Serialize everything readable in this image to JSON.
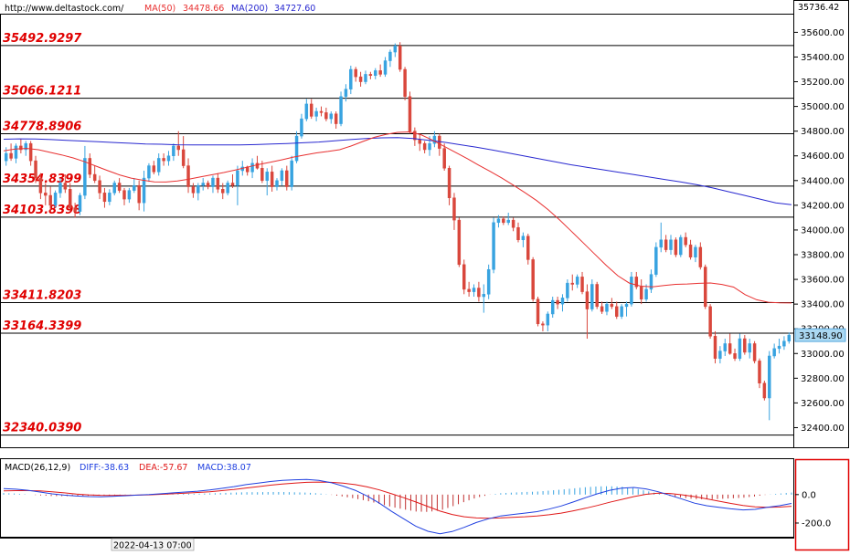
{
  "header": {
    "url": "http://www.deltastock.com/",
    "ma50_label": "MA(50)",
    "ma50_value": "34478.66",
    "ma200_label": "MA(200)",
    "ma200_value": "34727.60",
    "top_value": "35736.42"
  },
  "current_price": "33148.90",
  "current_price_value": 33148.9,
  "cursor_time": "2022-04-13 07:00",
  "levels": [
    {
      "label": "35492.9297",
      "value": 35492.9297
    },
    {
      "label": "35066.1211",
      "value": 35066.1211
    },
    {
      "label": "34778.8906",
      "value": 34778.8906
    },
    {
      "label": "34354.8399",
      "value": 34354.8399
    },
    {
      "label": "34103.8398",
      "value": 34103.8398
    },
    {
      "label": "33411.8203",
      "value": 33411.8203
    },
    {
      "label": "33164.3399",
      "value": 33164.3399
    },
    {
      "label": "32340.0390",
      "value": 32340.039
    }
  ],
  "macd_panel": {
    "label": "MACD(26,12,9)",
    "diff": "DIFF:-38.63",
    "dea": "DEA:-57.67",
    "macd": "MACD:38.07",
    "ticks": [
      "0.0",
      "-200.0"
    ],
    "tick_values": [
      0,
      -200
    ]
  },
  "colors": {
    "up": "#38a3e0",
    "down": "#d9473c",
    "ma50": "#e83030",
    "ma200": "#2828d0",
    "level_text": "#e00000",
    "diff": "#2040e0",
    "dea": "#e01818",
    "hist": "#c03030"
  },
  "chart_data": {
    "type": "candlestick",
    "ylim": [
      32300,
      35736
    ],
    "yticks": [
      32400,
      32600,
      32800,
      33000,
      33200,
      33400,
      33600,
      33800,
      34000,
      34200,
      34400,
      34600,
      34800,
      35000,
      35200,
      35400,
      35600
    ],
    "ohlc": [
      [
        34560,
        34670,
        34520,
        34620
      ],
      [
        34620,
        34700,
        34560,
        34580
      ],
      [
        34580,
        34700,
        34540,
        34680
      ],
      [
        34680,
        34740,
        34620,
        34650
      ],
      [
        34650,
        34720,
        34600,
        34700
      ],
      [
        34700,
        34720,
        34520,
        34560
      ],
      [
        34560,
        34600,
        34380,
        34420
      ],
      [
        34420,
        34460,
        34250,
        34300
      ],
      [
        34300,
        34380,
        34200,
        34280
      ],
      [
        34280,
        34350,
        34150,
        34200
      ],
      [
        34200,
        34320,
        34180,
        34300
      ],
      [
        34300,
        34420,
        34260,
        34380
      ],
      [
        34380,
        34450,
        34300,
        34330
      ],
      [
        34330,
        34380,
        34150,
        34180
      ],
      [
        34180,
        34220,
        34100,
        34150
      ],
      [
        34150,
        34300,
        34120,
        34280
      ],
      [
        34280,
        34680,
        34250,
        34580
      ],
      [
        34580,
        34620,
        34420,
        34450
      ],
      [
        34450,
        34520,
        34380,
        34400
      ],
      [
        34400,
        34440,
        34250,
        34300
      ],
      [
        34300,
        34340,
        34180,
        34230
      ],
      [
        34230,
        34330,
        34200,
        34300
      ],
      [
        34300,
        34400,
        34280,
        34380
      ],
      [
        34380,
        34420,
        34300,
        34320
      ],
      [
        34320,
        34340,
        34200,
        34250
      ],
      [
        34250,
        34340,
        34220,
        34320
      ],
      [
        34320,
        34420,
        34300,
        34360
      ],
      [
        34360,
        34400,
        34160,
        34220
      ],
      [
        34220,
        34480,
        34150,
        34420
      ],
      [
        34420,
        34540,
        34390,
        34520
      ],
      [
        34520,
        34560,
        34450,
        34470
      ],
      [
        34470,
        34620,
        34440,
        34580
      ],
      [
        34580,
        34620,
        34520,
        34560
      ],
      [
        34560,
        34640,
        34520,
        34600
      ],
      [
        34600,
        34700,
        34560,
        34680
      ],
      [
        34680,
        34800,
        34600,
        34650
      ],
      [
        34650,
        34760,
        34500,
        34520
      ],
      [
        34520,
        34580,
        34300,
        34350
      ],
      [
        34350,
        34380,
        34260,
        34300
      ],
      [
        34300,
        34380,
        34240,
        34360
      ],
      [
        34360,
        34420,
        34320,
        34380
      ],
      [
        34380,
        34400,
        34330,
        34350
      ],
      [
        34350,
        34440,
        34300,
        34420
      ],
      [
        34420,
        34460,
        34300,
        34330
      ],
      [
        34330,
        34380,
        34250,
        34300
      ],
      [
        34300,
        34400,
        34280,
        34380
      ],
      [
        34380,
        34450,
        34340,
        34360
      ],
      [
        34360,
        34520,
        34200,
        34480
      ],
      [
        34480,
        34560,
        34440,
        34510
      ],
      [
        34510,
        34520,
        34440,
        34470
      ],
      [
        34470,
        34580,
        34420,
        34540
      ],
      [
        34540,
        34600,
        34490,
        34500
      ],
      [
        34500,
        34560,
        34380,
        34400
      ],
      [
        34400,
        34500,
        34280,
        34470
      ],
      [
        34470,
        34520,
        34310,
        34350
      ],
      [
        34350,
        34420,
        34320,
        34400
      ],
      [
        34400,
        34500,
        34360,
        34480
      ],
      [
        34480,
        34520,
        34320,
        34350
      ],
      [
        34350,
        34600,
        34320,
        34560
      ],
      [
        34560,
        34800,
        34540,
        34760
      ],
      [
        34760,
        34940,
        34740,
        34900
      ],
      [
        34900,
        35060,
        34880,
        35020
      ],
      [
        35020,
        35060,
        34900,
        34920
      ],
      [
        34920,
        34990,
        34880,
        34960
      ],
      [
        34960,
        35000,
        34920,
        34950
      ],
      [
        34950,
        34990,
        34880,
        34900
      ],
      [
        34900,
        34960,
        34860,
        34940
      ],
      [
        34940,
        34960,
        34820,
        34860
      ],
      [
        34860,
        35120,
        34840,
        35080
      ],
      [
        35080,
        35180,
        35040,
        35140
      ],
      [
        35140,
        35330,
        35100,
        35300
      ],
      [
        35300,
        35320,
        35200,
        35240
      ],
      [
        35240,
        35280,
        35160,
        35200
      ],
      [
        35200,
        35290,
        35180,
        35260
      ],
      [
        35260,
        35280,
        35220,
        35250
      ],
      [
        35250,
        35310,
        35220,
        35290
      ],
      [
        35290,
        35340,
        35240,
        35260
      ],
      [
        35260,
        35400,
        35240,
        35370
      ],
      [
        35370,
        35460,
        35320,
        35440
      ],
      [
        35440,
        35510,
        35400,
        35490
      ],
      [
        35490,
        35520,
        35280,
        35300
      ],
      [
        35300,
        35320,
        35050,
        35080
      ],
      [
        35080,
        35120,
        34780,
        34800
      ],
      [
        34800,
        34830,
        34680,
        34730
      ],
      [
        34730,
        34780,
        34640,
        34700
      ],
      [
        34700,
        34720,
        34620,
        34650
      ],
      [
        34650,
        34760,
        34600,
        34700
      ],
      [
        34700,
        34800,
        34670,
        34760
      ],
      [
        34760,
        34780,
        34600,
        34660
      ],
      [
        34660,
        34700,
        34480,
        34500
      ],
      [
        34500,
        34520,
        34200,
        34260
      ],
      [
        34260,
        34300,
        34000,
        34080
      ],
      [
        34080,
        34100,
        33700,
        33720
      ],
      [
        33720,
        33760,
        33480,
        33520
      ],
      [
        33520,
        33580,
        33460,
        33500
      ],
      [
        33500,
        33560,
        33460,
        33530
      ],
      [
        33530,
        33580,
        33420,
        33460
      ],
      [
        33460,
        33560,
        33330,
        33480
      ],
      [
        33480,
        33720,
        33440,
        33680
      ],
      [
        33680,
        34100,
        33650,
        34060
      ],
      [
        34060,
        34120,
        34020,
        34090
      ],
      [
        34090,
        34110,
        34040,
        34060
      ],
      [
        34060,
        34140,
        34040,
        34080
      ],
      [
        34080,
        34100,
        33990,
        34020
      ],
      [
        34020,
        34060,
        33900,
        33920
      ],
      [
        33920,
        33980,
        33860,
        33950
      ],
      [
        33950,
        33970,
        33720,
        33760
      ],
      [
        33760,
        33780,
        33420,
        33440
      ],
      [
        33440,
        33460,
        33220,
        33240
      ],
      [
        33240,
        33260,
        33180,
        33230
      ],
      [
        33230,
        33340,
        33180,
        33320
      ],
      [
        33320,
        33460,
        33290,
        33430
      ],
      [
        33430,
        33460,
        33360,
        33400
      ],
      [
        33400,
        33480,
        33340,
        33450
      ],
      [
        33450,
        33600,
        33420,
        33570
      ],
      [
        33570,
        33640,
        33510,
        33560
      ],
      [
        33560,
        33640,
        33530,
        33620
      ],
      [
        33620,
        33660,
        33480,
        33500
      ],
      [
        33500,
        33560,
        33120,
        33360
      ],
      [
        33360,
        33600,
        33340,
        33560
      ],
      [
        33560,
        33580,
        33360,
        33380
      ],
      [
        33380,
        33420,
        33320,
        33340
      ],
      [
        33340,
        33420,
        33310,
        33400
      ],
      [
        33400,
        33450,
        33360,
        33380
      ],
      [
        33380,
        33420,
        33280,
        33300
      ],
      [
        33300,
        33400,
        33280,
        33380
      ],
      [
        33380,
        33420,
        33300,
        33400
      ],
      [
        33400,
        33660,
        33380,
        33620
      ],
      [
        33620,
        33660,
        33520,
        33540
      ],
      [
        33540,
        33600,
        33400,
        33440
      ],
      [
        33440,
        33560,
        33420,
        33520
      ],
      [
        33520,
        33680,
        33490,
        33640
      ],
      [
        33640,
        33900,
        33620,
        33860
      ],
      [
        33860,
        34060,
        33820,
        33920
      ],
      [
        33920,
        33960,
        33820,
        33840
      ],
      [
        33840,
        33960,
        33800,
        33920
      ],
      [
        33920,
        33940,
        33780,
        33800
      ],
      [
        33800,
        33960,
        33780,
        33940
      ],
      [
        33940,
        33980,
        33860,
        33880
      ],
      [
        33880,
        33920,
        33760,
        33780
      ],
      [
        33780,
        33880,
        33740,
        33860
      ],
      [
        33860,
        33900,
        33680,
        33700
      ],
      [
        33700,
        33720,
        33360,
        33380
      ],
      [
        33380,
        33400,
        33120,
        33140
      ],
      [
        33140,
        33180,
        32920,
        32960
      ],
      [
        32960,
        33060,
        32920,
        33020
      ],
      [
        33020,
        33120,
        32980,
        33080
      ],
      [
        33080,
        33160,
        32990,
        33000
      ],
      [
        33000,
        33040,
        32940,
        32960
      ],
      [
        32960,
        33160,
        32940,
        33120
      ],
      [
        33120,
        33150,
        32990,
        33010
      ],
      [
        33010,
        33120,
        32960,
        33080
      ],
      [
        33080,
        33100,
        32920,
        32940
      ],
      [
        32940,
        32960,
        32720,
        32760
      ],
      [
        32760,
        32780,
        32620,
        32640
      ],
      [
        32640,
        33020,
        32460,
        32980
      ],
      [
        32980,
        33080,
        32960,
        33040
      ],
      [
        33040,
        33120,
        33000,
        33060
      ],
      [
        33060,
        33140,
        33030,
        33100
      ],
      [
        33100,
        33170,
        33080,
        33148.9
      ]
    ],
    "ma50": [
      34640,
      34655,
      34660,
      34650,
      34628,
      34608,
      34583,
      34552,
      34516,
      34480,
      34446,
      34420,
      34403,
      34390,
      34388,
      34397,
      34412,
      34430,
      34447,
      34465,
      34486,
      34508,
      34530,
      34548,
      34568,
      34590,
      34608,
      34624,
      34636,
      34650,
      34680,
      34716,
      34750,
      34773,
      34790,
      34794,
      34772,
      34728,
      34678,
      34628,
      34578,
      34525,
      34474,
      34420,
      34362,
      34302,
      34238,
      34164,
      34080,
      33990,
      33898,
      33806,
      33714,
      33630,
      33570,
      33545,
      33540,
      33551,
      33560,
      33563,
      33568,
      33571,
      33559,
      33538,
      33476,
      33435,
      33415,
      33410,
      33409
    ],
    "ma200": [
      34735,
      34738,
      34736,
      34732,
      34726,
      34720,
      34714,
      34708,
      34702,
      34696,
      34694,
      34690,
      34688,
      34688,
      34688,
      34688,
      34691,
      34696,
      34700,
      34706,
      34712,
      34722,
      34732,
      34740,
      34746,
      34748,
      34740,
      34726,
      34710,
      34690,
      34670,
      34648,
      34624,
      34600,
      34576,
      34552,
      34528,
      34508,
      34488,
      34468,
      34448,
      34428,
      34408,
      34388,
      34366,
      34340,
      34310,
      34280,
      34250,
      34220,
      34204
    ],
    "macd": {
      "diff": [
        42,
        38,
        30,
        18,
        5,
        -4,
        -10,
        -14,
        -15,
        -12,
        -8,
        -4,
        0,
        6,
        12,
        18,
        24,
        32,
        44,
        56,
        70,
        80,
        92,
        100,
        104,
        106,
        100,
        84,
        60,
        30,
        -10,
        -60,
        -118,
        -170,
        -222,
        -258,
        -276,
        -260,
        -230,
        -196,
        -170,
        -150,
        -140,
        -130,
        -120,
        -102,
        -80,
        -52,
        -22,
        6,
        30,
        45,
        50,
        40,
        20,
        -6,
        -32,
        -60,
        -78,
        -90,
        -100,
        -108,
        -104,
        -90,
        -78,
        -62
      ],
      "dea": [
        26,
        28,
        28,
        26,
        20,
        12,
        4,
        -2,
        -5,
        -6,
        -5,
        -4,
        -2,
        2,
        6,
        10,
        15,
        20,
        28,
        36,
        46,
        56,
        66,
        74,
        81,
        86,
        88,
        86,
        80,
        70,
        54,
        33,
        6,
        -22,
        -52,
        -84,
        -116,
        -140,
        -156,
        -164,
        -166,
        -164,
        -160,
        -156,
        -150,
        -142,
        -130,
        -114,
        -96,
        -76,
        -54,
        -34,
        -14,
        2,
        10,
        8,
        -2,
        -14,
        -30,
        -46,
        -62,
        -76,
        -86,
        -90,
        -88,
        -82
      ],
      "hist_note": "MACD histogram = 2*(DIFF-DEA)"
    }
  }
}
